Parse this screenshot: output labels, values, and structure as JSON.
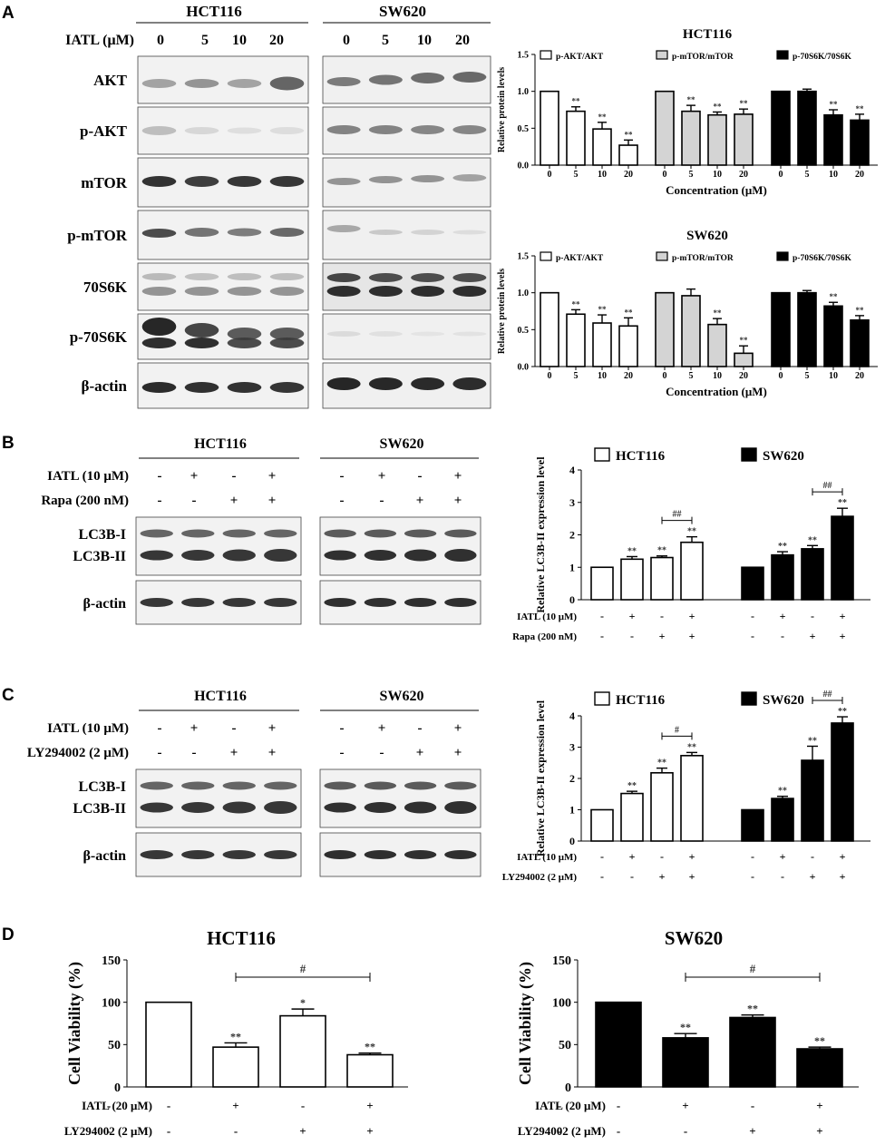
{
  "panels": {
    "A": {
      "letter": "A",
      "cell_lines": [
        "HCT116",
        "SW620"
      ],
      "treatment_label": "IATL (μM)",
      "doses": [
        "0",
        "5",
        "10",
        "20"
      ],
      "blot_rows": [
        "AKT",
        "p-AKT",
        "mTOR",
        "p-mTOR",
        "70S6K",
        "p-70S6K",
        "β-actin"
      ]
    },
    "B": {
      "letter": "B",
      "cell_lines": [
        "HCT116",
        "SW620"
      ],
      "conditions": [
        {
          "label": "IATL (10 μM)",
          "signs": [
            "-",
            "+",
            "-",
            "+"
          ]
        },
        {
          "label": "Rapa (200 nM)",
          "signs": [
            "-",
            "-",
            "+",
            "+"
          ]
        }
      ],
      "blot_rows": [
        "LC3B-I",
        "LC3B-II",
        "β-actin"
      ]
    },
    "C": {
      "letter": "C",
      "cell_lines": [
        "HCT116",
        "SW620"
      ],
      "conditions": [
        {
          "label": "IATL (10 μM)",
          "signs": [
            "-",
            "+",
            "-",
            "+"
          ]
        },
        {
          "label": "LY294002 (2 μM)",
          "signs": [
            "-",
            "-",
            "+",
            "+"
          ]
        }
      ],
      "blot_rows": [
        "LC3B-I",
        "LC3B-II",
        "β-actin"
      ]
    },
    "D": {
      "letter": "D"
    }
  },
  "chart_data": [
    {
      "id": "A-HCT116",
      "type": "bar",
      "title": "HCT116",
      "ylabel": "Relative protein levels",
      "xlabel": "Concentration (μM)",
      "ylim": [
        0,
        1.5
      ],
      "yticks": [
        "0.0",
        "0.5",
        "1.0",
        "1.5"
      ],
      "groups": [
        {
          "name": "p-AKT/AKT",
          "fill": "#ffffff",
          "categories": [
            "0",
            "5",
            "10",
            "20"
          ],
          "values": [
            1.0,
            0.73,
            0.49,
            0.27
          ],
          "errors": [
            0,
            0.06,
            0.09,
            0.07
          ],
          "sig": [
            "",
            "**",
            "**",
            "**"
          ]
        },
        {
          "name": "p-mTOR/mTOR",
          "fill": "#d4d4d4",
          "categories": [
            "0",
            "5",
            "10",
            "20"
          ],
          "values": [
            1.0,
            0.73,
            0.68,
            0.69
          ],
          "errors": [
            0,
            0.08,
            0.04,
            0.07
          ],
          "sig": [
            "",
            "**",
            "**",
            "**"
          ]
        },
        {
          "name": "p-70S6K/70S6K",
          "fill": "#000000",
          "categories": [
            "0",
            "5",
            "10",
            "20"
          ],
          "values": [
            1.0,
            1.0,
            0.68,
            0.61
          ],
          "errors": [
            0,
            0.03,
            0.07,
            0.08
          ],
          "sig": [
            "",
            "",
            "**",
            "**"
          ]
        }
      ]
    },
    {
      "id": "A-SW620",
      "type": "bar",
      "title": "SW620",
      "ylabel": "Relative protein levels",
      "xlabel": "Concentration (μM)",
      "ylim": [
        0,
        1.5
      ],
      "yticks": [
        "0.0",
        "0.5",
        "1.0",
        "1.5"
      ],
      "groups": [
        {
          "name": "p-AKT/AKT",
          "fill": "#ffffff",
          "categories": [
            "0",
            "5",
            "10",
            "20"
          ],
          "values": [
            1.0,
            0.71,
            0.59,
            0.55
          ],
          "errors": [
            0,
            0.06,
            0.11,
            0.11
          ],
          "sig": [
            "",
            "**",
            "**",
            "**"
          ]
        },
        {
          "name": "p-mTOR/mTOR",
          "fill": "#d4d4d4",
          "categories": [
            "0",
            "5",
            "10",
            "20"
          ],
          "values": [
            1.0,
            0.96,
            0.57,
            0.18
          ],
          "errors": [
            0,
            0.09,
            0.08,
            0.1
          ],
          "sig": [
            "",
            "",
            "**",
            "**"
          ]
        },
        {
          "name": "p-70S6K/70S6K",
          "fill": "#000000",
          "categories": [
            "0",
            "5",
            "10",
            "20"
          ],
          "values": [
            1.0,
            1.0,
            0.82,
            0.63
          ],
          "errors": [
            0,
            0.03,
            0.05,
            0.06
          ],
          "sig": [
            "",
            "",
            "**",
            "**"
          ]
        }
      ]
    },
    {
      "id": "B",
      "type": "bar",
      "ylabel": "Relative LC3B-II expression level",
      "ylim": [
        0,
        4
      ],
      "yticks": [
        "0",
        "1",
        "2",
        "3",
        "4"
      ],
      "rows": [
        {
          "label": "IATL (10 μM)",
          "signs": [
            "-",
            "+",
            "-",
            "+",
            "-",
            "+",
            "-",
            "+"
          ]
        },
        {
          "label": "Rapa (200 nM)",
          "signs": [
            "-",
            "-",
            "+",
            "+",
            "-",
            "-",
            "+",
            "+"
          ]
        }
      ],
      "series": [
        {
          "name": "HCT116",
          "fill": "#ffffff",
          "values": [
            1.0,
            1.25,
            1.3,
            1.77
          ],
          "errors": [
            0,
            0.08,
            0.05,
            0.17
          ],
          "sig": [
            "",
            "**",
            "**",
            "**"
          ],
          "bracket": "##"
        },
        {
          "name": "SW620",
          "fill": "#000000",
          "values": [
            1.0,
            1.38,
            1.57,
            2.57
          ],
          "errors": [
            0,
            0.1,
            0.1,
            0.25
          ],
          "sig": [
            "",
            "**",
            "**",
            "**"
          ],
          "bracket": "##"
        }
      ]
    },
    {
      "id": "C",
      "type": "bar",
      "ylabel": "Relative LC3B-II expression level",
      "ylim": [
        0,
        4
      ],
      "yticks": [
        "0",
        "1",
        "2",
        "3",
        "4"
      ],
      "rows": [
        {
          "label": "IATL (10 μM)",
          "signs": [
            "-",
            "+",
            "-",
            "+",
            "-",
            "+",
            "-",
            "+"
          ]
        },
        {
          "label": "LY294002 (2 μM)",
          "signs": [
            "-",
            "-",
            "+",
            "+",
            "-",
            "-",
            "+",
            "+"
          ]
        }
      ],
      "series": [
        {
          "name": "HCT116",
          "fill": "#ffffff",
          "values": [
            1.0,
            1.52,
            2.18,
            2.73
          ],
          "errors": [
            0,
            0.07,
            0.15,
            0.1
          ],
          "sig": [
            "",
            "**",
            "**",
            "**"
          ],
          "bracket": "#"
        },
        {
          "name": "SW620",
          "fill": "#000000",
          "values": [
            1.0,
            1.36,
            2.58,
            3.77
          ],
          "errors": [
            0,
            0.07,
            0.45,
            0.2
          ],
          "sig": [
            "",
            "**",
            "**",
            "**"
          ],
          "bracket": "##"
        }
      ]
    },
    {
      "id": "D-HCT116",
      "type": "bar",
      "title": "HCT116",
      "ylabel": "Cell Viability (%)",
      "ylim": [
        0,
        150
      ],
      "yticks": [
        "0",
        "50",
        "100",
        "150"
      ],
      "fill": "#ffffff",
      "values": [
        100,
        47,
        84,
        38
      ],
      "errors": [
        0,
        5,
        8,
        2
      ],
      "sig": [
        "",
        "**",
        "*",
        "**"
      ],
      "bracket": "#",
      "rows": [
        {
          "label": "IATL (20 μM)",
          "signs": [
            "-",
            "+",
            "-",
            "+"
          ]
        },
        {
          "label": "LY294002 (2 μM)",
          "signs": [
            "-",
            "-",
            "+",
            "+"
          ]
        }
      ]
    },
    {
      "id": "D-SW620",
      "type": "bar",
      "title": "SW620",
      "ylabel": "Cell Viability (%)",
      "ylim": [
        0,
        150
      ],
      "yticks": [
        "0",
        "50",
        "100",
        "150"
      ],
      "fill": "#000000",
      "values": [
        100,
        58,
        82,
        45
      ],
      "errors": [
        0,
        5,
        3,
        2
      ],
      "sig": [
        "",
        "**",
        "**",
        "**"
      ],
      "bracket": "#",
      "rows": [
        {
          "label": "IATL (20 μM)",
          "signs": [
            "-",
            "+",
            "-",
            "+"
          ]
        },
        {
          "label": "LY294002 (2 μM)",
          "signs": [
            "-",
            "-",
            "+",
            "+"
          ]
        }
      ]
    }
  ]
}
